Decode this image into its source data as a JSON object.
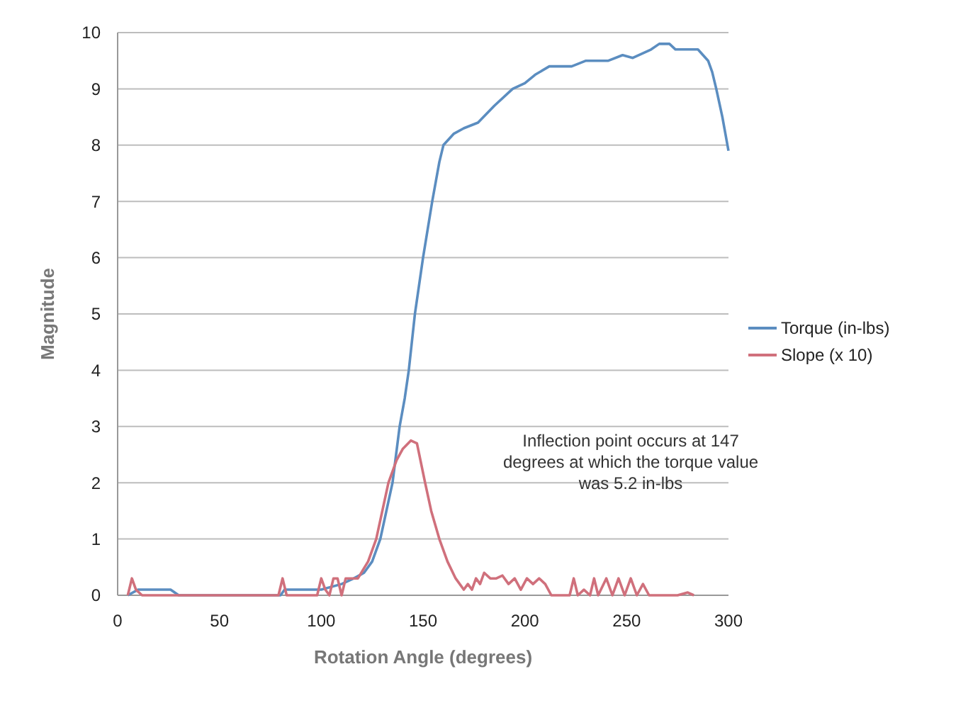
{
  "chart_data": {
    "type": "line",
    "xlabel": "Rotation Angle (degrees)",
    "ylabel": "Magnitude",
    "xlim": [
      0,
      300
    ],
    "xticks": [
      0,
      50,
      100,
      150,
      200,
      250,
      300
    ],
    "ylim": [
      0,
      10
    ],
    "yticks": [
      0,
      1,
      2,
      3,
      4,
      5,
      6,
      7,
      8,
      9,
      10
    ],
    "grid": "y",
    "legend": "right",
    "marker": "none",
    "line_style": "solid",
    "annotations": [
      "Inflection point occurs at 147 degrees at which the torque value was 5.2 in-lbs"
    ],
    "series": [
      {
        "name": "Torque (in-lbs)",
        "color": "#5b8dc0",
        "x": [
          5,
          10,
          20,
          26,
          30,
          50,
          80,
          82,
          100,
          110,
          116,
          121,
          125,
          129,
          132,
          135,
          138.5,
          141,
          143,
          146,
          150,
          154.5,
          158,
          160,
          165,
          170,
          177,
          185,
          194,
          200,
          205,
          212,
          223,
          230,
          241,
          248,
          253,
          262,
          266,
          271,
          274,
          285,
          290,
          292,
          294,
          297,
          300
        ],
        "values": [
          0,
          0.1,
          0.1,
          0.1,
          0,
          0,
          0,
          0.1,
          0.1,
          0.2,
          0.3,
          0.4,
          0.6,
          1,
          1.5,
          2,
          3,
          3.5,
          4,
          5,
          6,
          7,
          7.7,
          8,
          8.2,
          8.3,
          8.4,
          8.7,
          9,
          9.1,
          9.25,
          9.4,
          9.4,
          9.5,
          9.5,
          9.6,
          9.55,
          9.7,
          9.8,
          9.8,
          9.7,
          9.7,
          9.5,
          9.3,
          9,
          8.5,
          7.9
        ]
      },
      {
        "name": "Slope (x 10)",
        "color": "#d0707c",
        "x": [
          5,
          7,
          9,
          12,
          28,
          50,
          79,
          81,
          83,
          98,
          100,
          102,
          104,
          106,
          108,
          110,
          112,
          114,
          118,
          123,
          127,
          130,
          133,
          137,
          140,
          144,
          147,
          151,
          154,
          158,
          162,
          166,
          170,
          172,
          174,
          176,
          178,
          180,
          183,
          186,
          189,
          192,
          195,
          198,
          201,
          204,
          207,
          210,
          213,
          215,
          222,
          224,
          226,
          229,
          232,
          234,
          236,
          240,
          243,
          246,
          249,
          252,
          255,
          258,
          261,
          263,
          266,
          275,
          280,
          283
        ],
        "values": [
          0,
          0.3,
          0.1,
          0,
          0,
          0,
          0,
          0.3,
          0,
          0,
          0.3,
          0.1,
          0,
          0.3,
          0.3,
          0,
          0.3,
          0.3,
          0.3,
          0.6,
          1,
          1.5,
          2,
          2.4,
          2.6,
          2.75,
          2.7,
          2,
          1.5,
          1,
          0.6,
          0.3,
          0.1,
          0.2,
          0.1,
          0.3,
          0.2,
          0.4,
          0.3,
          0.3,
          0.35,
          0.2,
          0.3,
          0.1,
          0.3,
          0.2,
          0.3,
          0.2,
          0,
          0,
          0,
          0.3,
          0,
          0.1,
          0,
          0.3,
          0,
          0.3,
          0,
          0.3,
          0,
          0.3,
          0,
          0.2,
          0,
          0,
          0,
          0,
          0.05,
          0
        ]
      }
    ]
  }
}
